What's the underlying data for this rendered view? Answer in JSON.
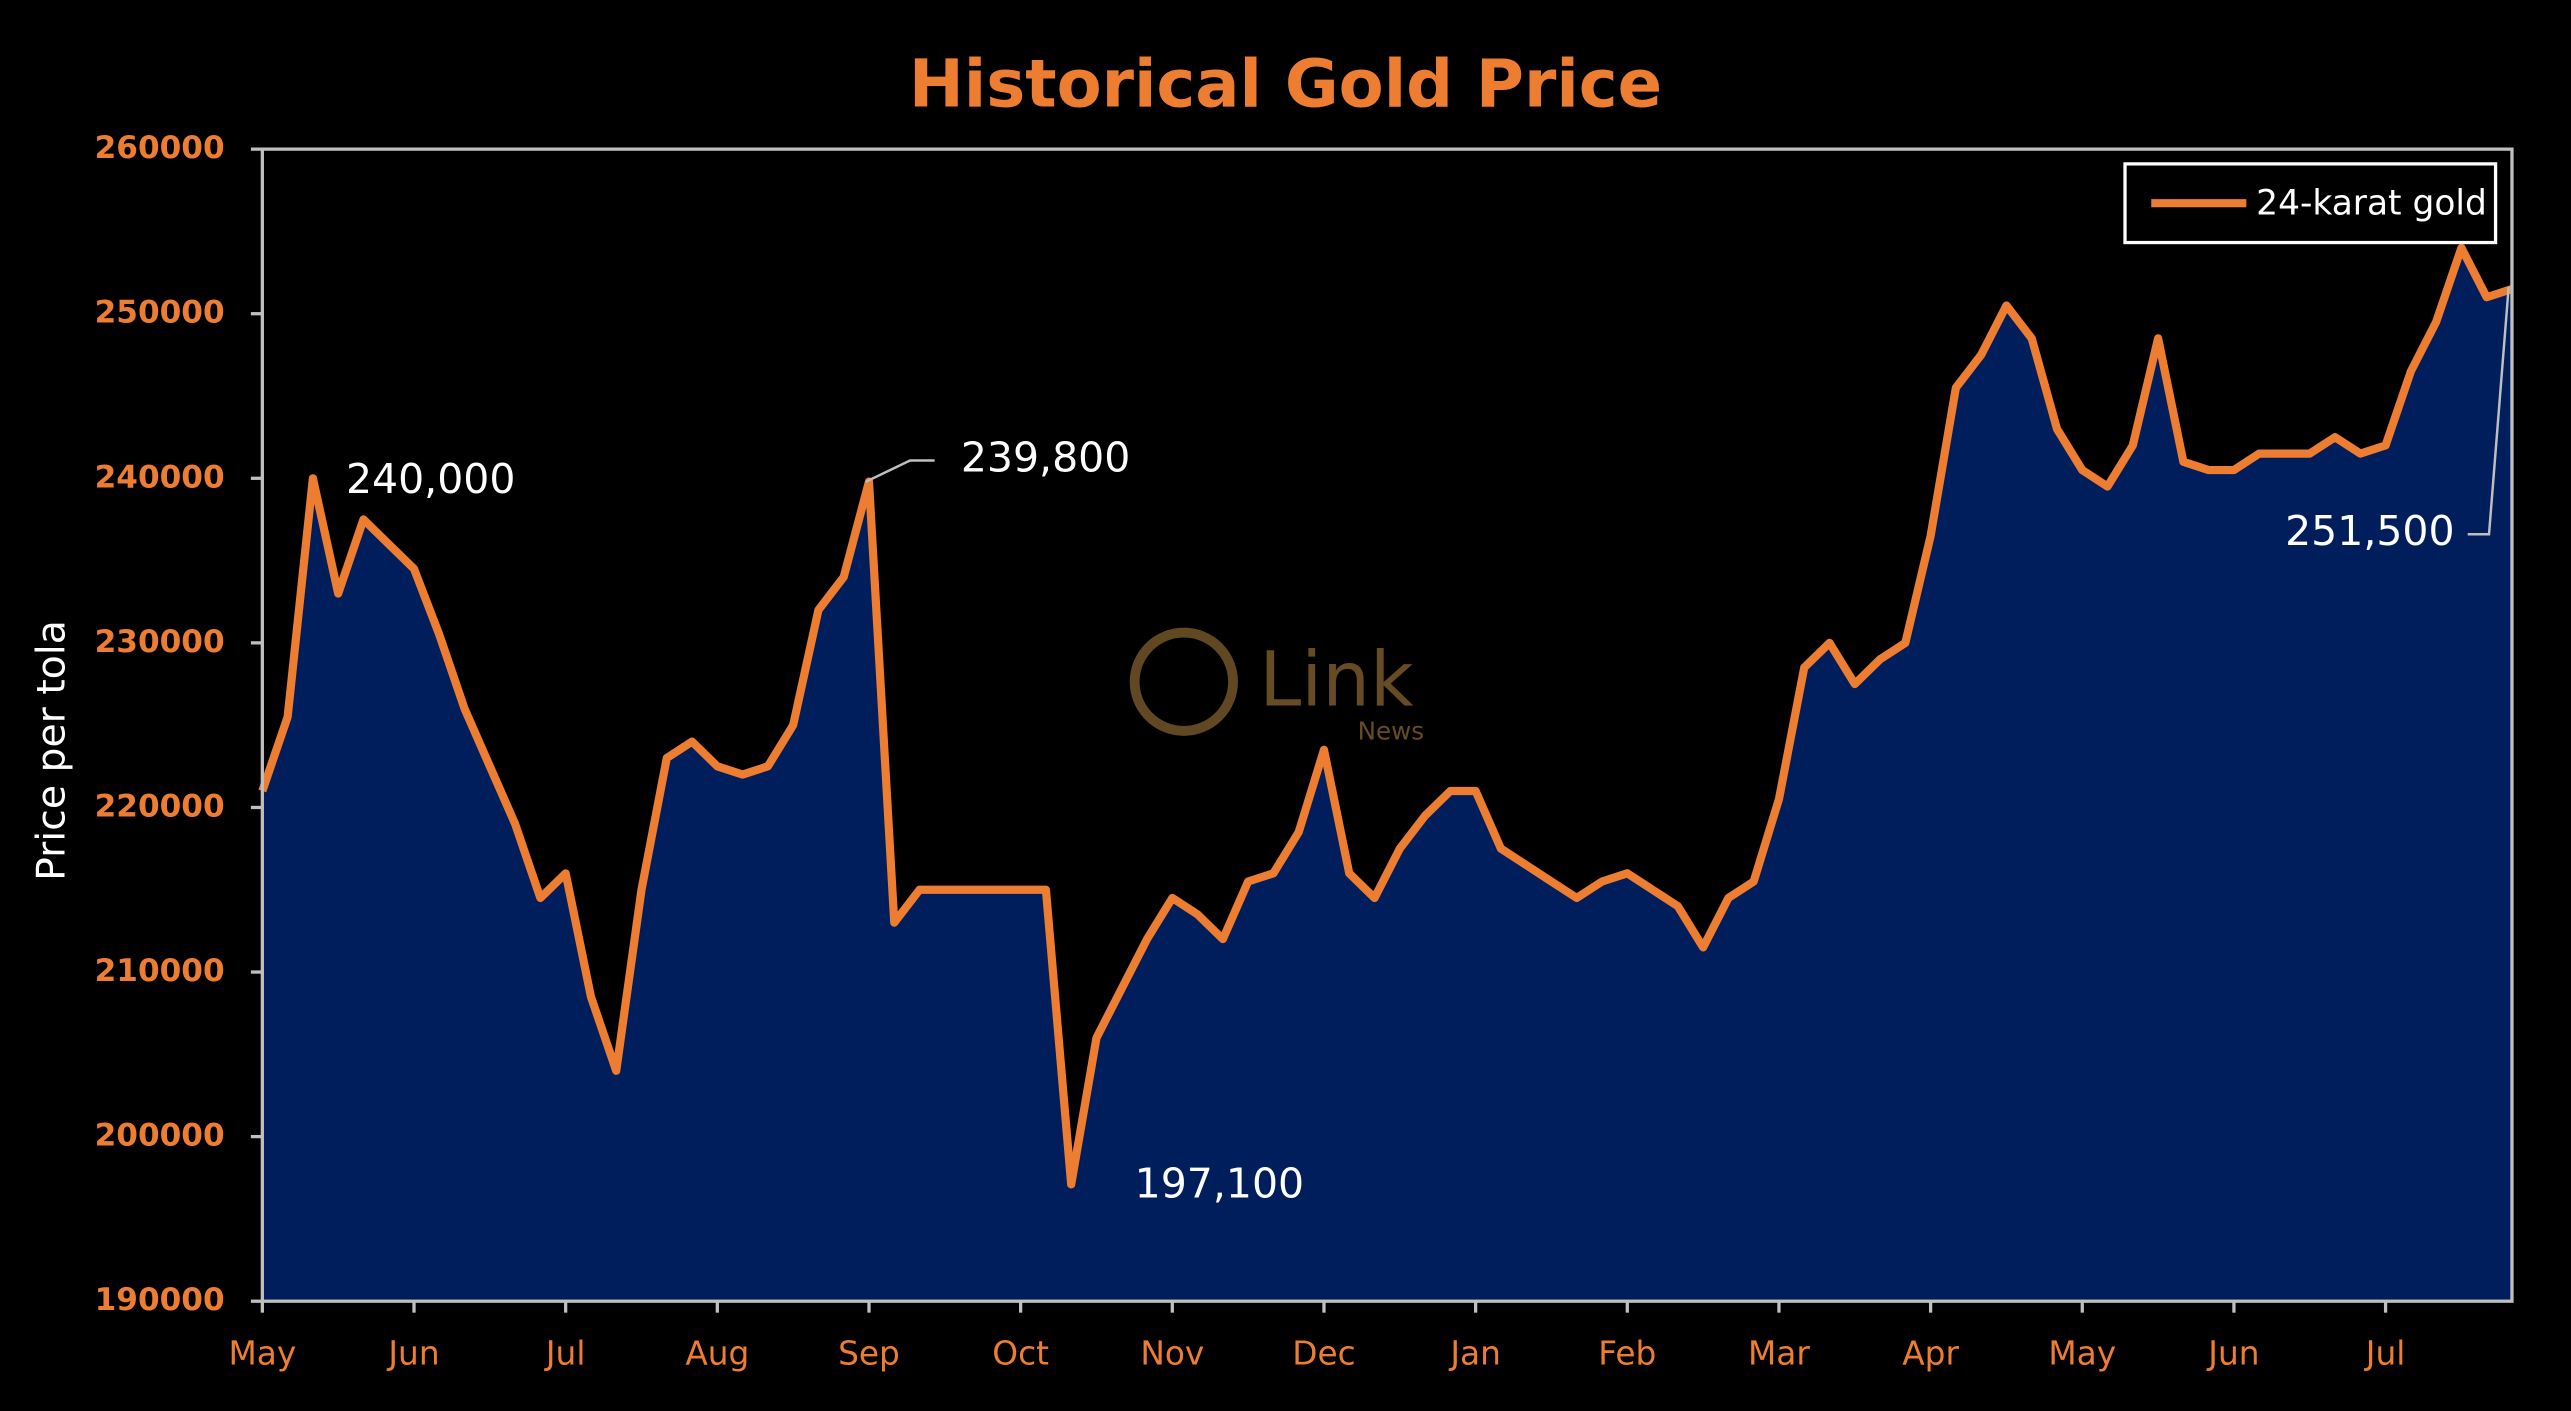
{
  "chart_data": {
    "type": "area",
    "title": "Historical Gold Price",
    "y_label": "Price per tola",
    "watermark": [
      "Link",
      "News"
    ],
    "categories": [
      "May",
      null,
      null,
      null,
      null,
      null,
      "Jun",
      null,
      null,
      null,
      null,
      null,
      "Jul",
      null,
      null,
      null,
      null,
      null,
      "Aug",
      null,
      null,
      null,
      null,
      null,
      "Sep",
      null,
      null,
      null,
      null,
      null,
      "Oct",
      null,
      null,
      null,
      null,
      null,
      "Nov",
      null,
      null,
      null,
      null,
      null,
      "Dec",
      null,
      null,
      null,
      null,
      null,
      "Jan",
      null,
      null,
      null,
      null,
      null,
      "Feb",
      null,
      null,
      null,
      null,
      null,
      "Mar",
      null,
      null,
      null,
      null,
      null,
      "Apr",
      null,
      null,
      null,
      null,
      null,
      "May",
      null,
      null,
      null,
      null,
      null,
      "Jun",
      null,
      null,
      null,
      null,
      null,
      "Jul",
      null,
      null,
      null,
      null,
      null
    ],
    "series": [
      {
        "name": "24-karat gold",
        "color": "#ed7d31",
        "fill": "#002060",
        "values": [
          221000,
          225500,
          240000,
          233000,
          237500,
          236000,
          234500,
          230500,
          226000,
          222500,
          219000,
          214500,
          216000,
          208500,
          204000,
          215000,
          223000,
          224000,
          222500,
          222000,
          222500,
          225000,
          232000,
          234000,
          239800,
          213000,
          215000,
          215000,
          215000,
          215000,
          215000,
          215000,
          197100,
          206000,
          209000,
          212000,
          214500,
          213500,
          212000,
          215500,
          216000,
          218500,
          223500,
          216000,
          214500,
          217500,
          219500,
          221000,
          221000,
          217500,
          216500,
          215500,
          214500,
          215500,
          216000,
          215000,
          214000,
          211500,
          214500,
          215500,
          220500,
          228500,
          230000,
          227500,
          229000,
          230000,
          236500,
          245500,
          247500,
          250500,
          248500,
          243000,
          240500,
          239500,
          242000,
          248500,
          241000,
          240500,
          240500,
          241500,
          241500,
          241500,
          242500,
          241500,
          242000,
          246500,
          249500,
          254000,
          251000,
          251500
        ]
      }
    ],
    "ylim": [
      190000,
      260000
    ],
    "yticks": [
      190000,
      200000,
      210000,
      220000,
      230000,
      240000,
      250000,
      260000
    ],
    "annotations": [
      "240,000",
      "239,800",
      "197,100",
      "251,500"
    ],
    "legend": "top-right"
  }
}
